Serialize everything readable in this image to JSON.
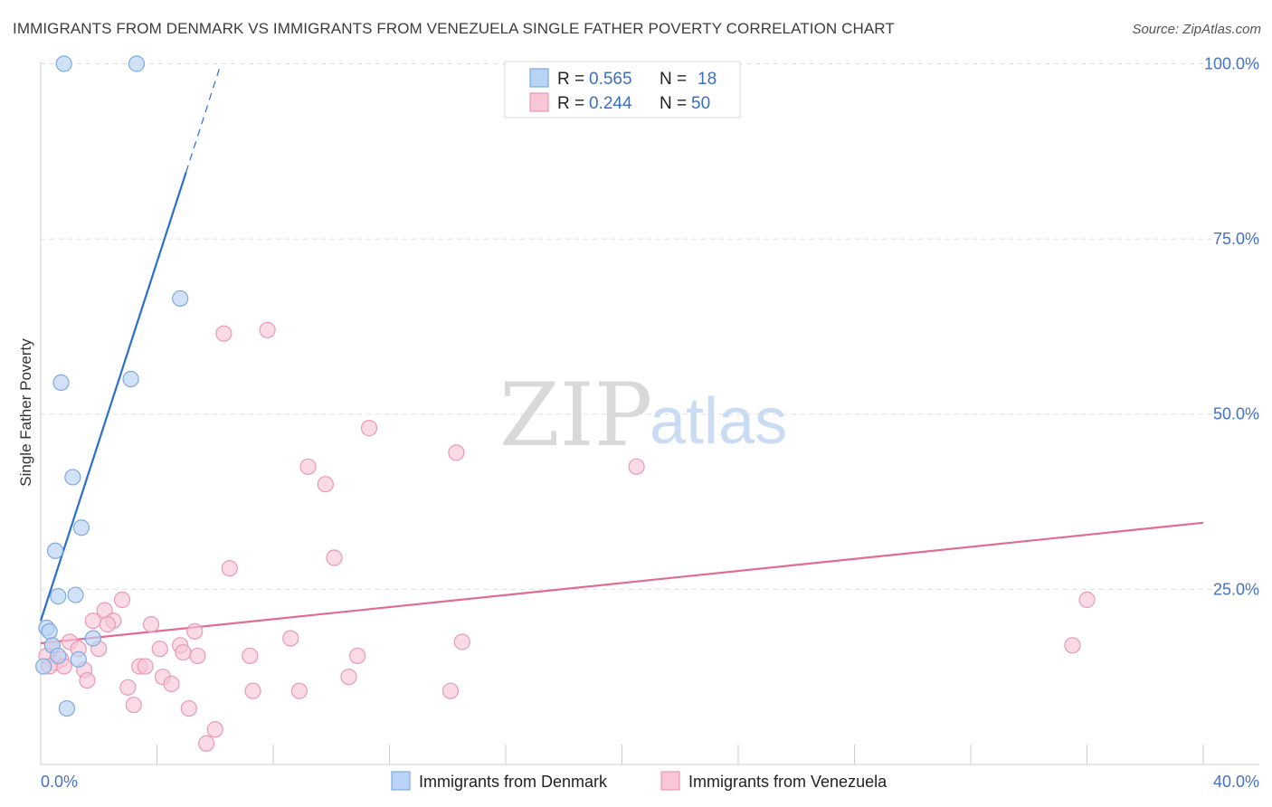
{
  "title": "IMMIGRANTS FROM DENMARK VS IMMIGRANTS FROM VENEZUELA SINGLE FATHER POVERTY CORRELATION CHART",
  "source": "Source: ZipAtlas.com",
  "watermark": {
    "zip": "ZIP",
    "atlas": "atlas"
  },
  "colors": {
    "denmark_fill": "#b8d3f5",
    "denmark_stroke": "#7fa9df",
    "denmark_line": "#2a6fcc",
    "venezuela_fill": "#f8c6d6",
    "venezuela_stroke": "#e89ab3",
    "venezuela_line": "#e06b95",
    "axis_text": "#4472c4",
    "grid": "#dddddd"
  },
  "legend": {
    "rows": [
      {
        "r_label": "R =",
        "r_value": "0.565",
        "n_label": "N =",
        "n_value": "18"
      },
      {
        "r_label": "R =",
        "r_value": "0.244",
        "n_label": "N =",
        "n_value": "50"
      }
    ]
  },
  "bottom_legend": {
    "denmark": "Immigrants from Denmark",
    "venezuela": "Immigrants from Venezuela"
  },
  "chart_data": {
    "type": "scatter",
    "title": "IMMIGRANTS FROM DENMARK VS IMMIGRANTS FROM VENEZUELA SINGLE FATHER POVERTY CORRELATION CHART",
    "xlabel": "",
    "ylabel": "Single Father Poverty",
    "xlim": [
      0,
      40
    ],
    "ylim": [
      0,
      102
    ],
    "x_tick_labels": [
      "0.0%",
      "40.0%"
    ],
    "y_ticks": [
      25,
      50,
      75,
      100
    ],
    "y_tick_labels": [
      "25.0%",
      "50.0%",
      "75.0%",
      "100.0%"
    ],
    "grid": true,
    "legend_position": "top-center",
    "series": [
      {
        "name": "Immigrants from Denmark",
        "r": 0.565,
        "n": 18,
        "points": [
          [
            0.8,
            100
          ],
          [
            3.3,
            100
          ],
          [
            4.8,
            66.5
          ],
          [
            0.7,
            54.5
          ],
          [
            3.1,
            55.0
          ],
          [
            1.1,
            41.0
          ],
          [
            1.4,
            33.8
          ],
          [
            0.5,
            30.5
          ],
          [
            0.6,
            24.0
          ],
          [
            1.2,
            24.2
          ],
          [
            0.2,
            19.5
          ],
          [
            0.3,
            19.0
          ],
          [
            1.8,
            18.0
          ],
          [
            0.4,
            17.0
          ],
          [
            0.6,
            15.5
          ],
          [
            1.3,
            15.0
          ],
          [
            0.1,
            14.0
          ],
          [
            0.9,
            8.0
          ]
        ],
        "trend": {
          "x0": 0.0,
          "y0": 20.5,
          "x1": 5.0,
          "y1": 84.5,
          "dash_to_x": 6.2,
          "dash_to_y": 100
        }
      },
      {
        "name": "Immigrants from Venezuela",
        "r": 0.244,
        "n": 50,
        "points": [
          [
            6.3,
            61.5
          ],
          [
            7.8,
            62.0
          ],
          [
            11.3,
            48.0
          ],
          [
            14.3,
            44.5
          ],
          [
            20.5,
            42.5
          ],
          [
            9.2,
            42.5
          ],
          [
            9.8,
            40.0
          ],
          [
            10.1,
            29.5
          ],
          [
            6.5,
            28.0
          ],
          [
            36.0,
            23.5
          ],
          [
            2.8,
            23.5
          ],
          [
            2.2,
            22.0
          ],
          [
            1.8,
            20.5
          ],
          [
            2.5,
            20.5
          ],
          [
            2.3,
            20.0
          ],
          [
            3.8,
            20.0
          ],
          [
            5.3,
            19.0
          ],
          [
            8.6,
            18.0
          ],
          [
            14.5,
            17.5
          ],
          [
            35.5,
            17.0
          ],
          [
            0.4,
            17.0
          ],
          [
            1.0,
            17.5
          ],
          [
            1.3,
            16.5
          ],
          [
            2.0,
            16.5
          ],
          [
            4.1,
            16.5
          ],
          [
            4.8,
            17.0
          ],
          [
            4.9,
            16.0
          ],
          [
            5.4,
            15.5
          ],
          [
            7.2,
            15.5
          ],
          [
            10.9,
            15.5
          ],
          [
            0.2,
            15.5
          ],
          [
            0.5,
            14.5
          ],
          [
            0.7,
            15.0
          ],
          [
            0.8,
            14.0
          ],
          [
            1.5,
            13.5
          ],
          [
            3.4,
            14.0
          ],
          [
            3.6,
            14.0
          ],
          [
            4.2,
            12.5
          ],
          [
            10.6,
            12.5
          ],
          [
            1.6,
            12.0
          ],
          [
            3.0,
            11.0
          ],
          [
            4.5,
            11.5
          ],
          [
            7.3,
            10.5
          ],
          [
            8.9,
            10.5
          ],
          [
            14.1,
            10.5
          ],
          [
            3.2,
            8.5
          ],
          [
            5.1,
            8.0
          ],
          [
            6.0,
            5.0
          ],
          [
            5.7,
            3.0
          ],
          [
            0.3,
            14.0
          ]
        ],
        "trend": {
          "x0": 0.0,
          "y0": 17.3,
          "x1": 40.0,
          "y1": 34.5
        }
      }
    ]
  }
}
